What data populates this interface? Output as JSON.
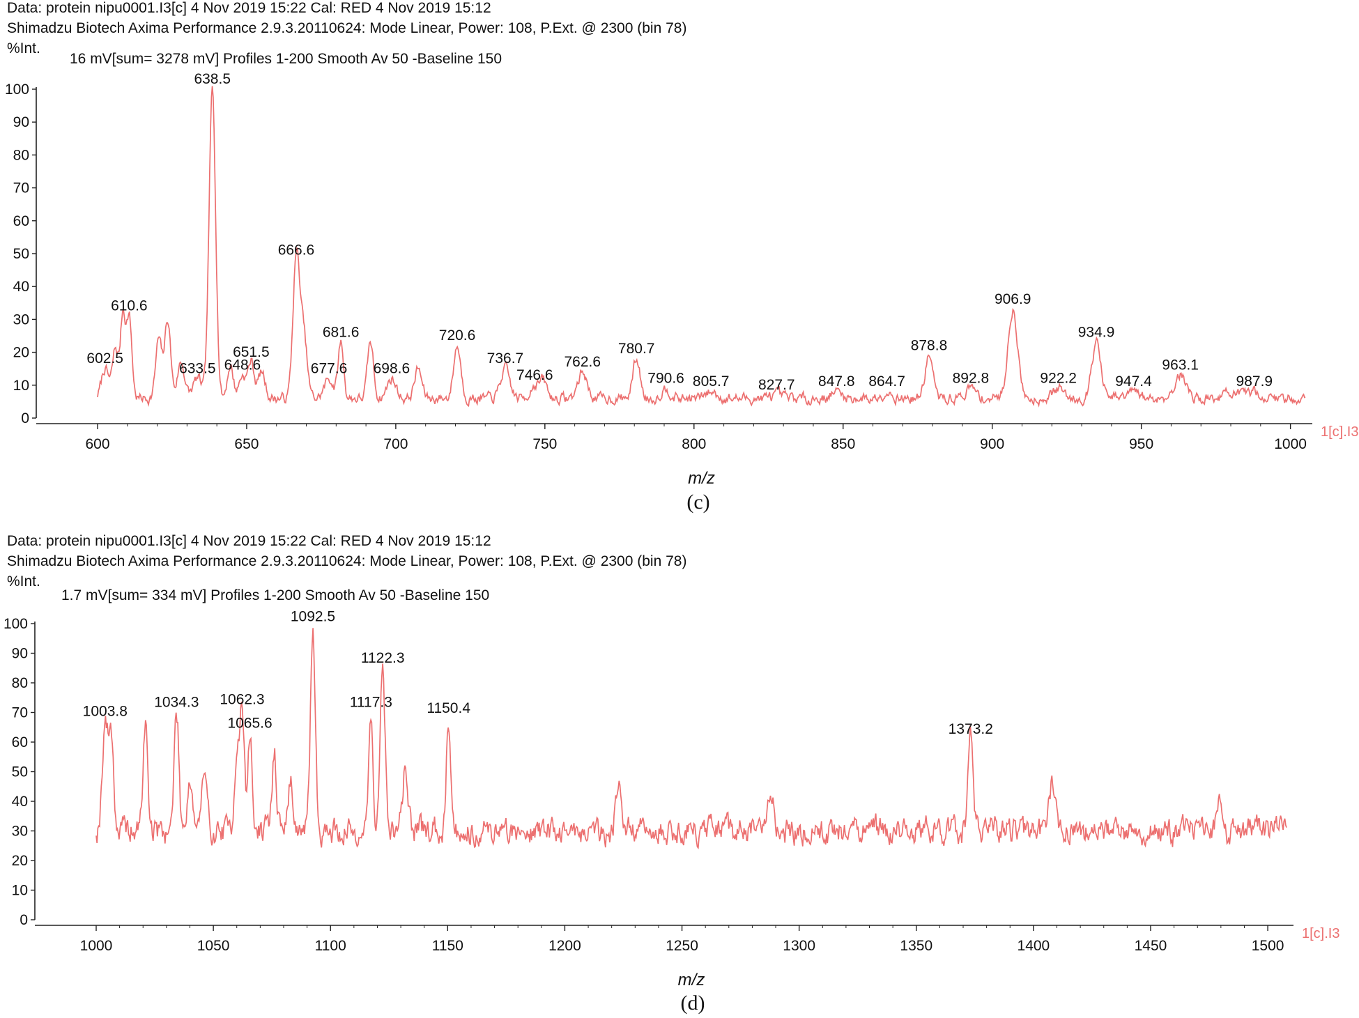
{
  "colors": {
    "trace": "#ec7070",
    "axis": "#222222",
    "trace_label": "#ec7070"
  },
  "chart_data": [
    {
      "id": "c",
      "type": "line",
      "caption": "(c)",
      "header_line1": "Data: protein nipu0001.I3[c] 4 Nov 2019 15:22 Cal: RED 4 Nov 2019 15:12",
      "header_line2": "Shimadzu Biotech Axima Performance 2.9.3.20110624: Mode Linear, Power: 108, P.Ext. @ 2300 (bin 78)",
      "ylabel": "%Int.",
      "subtitle": "16 mV[sum= 3278 mV]  Profiles 1-200 Smooth Av 50 -Baseline 150",
      "xlabel": "m/z",
      "trace_label": "1[c].I3",
      "xlim": [
        600,
        1005
      ],
      "ylim": [
        0,
        100
      ],
      "xticks": [
        600,
        650,
        700,
        750,
        800,
        850,
        900,
        950,
        1000
      ],
      "yticks": [
        0,
        10,
        20,
        30,
        40,
        50,
        60,
        70,
        80,
        90,
        100
      ],
      "baseline": 6,
      "peaks": [
        {
          "x": 602.5,
          "y": 15,
          "w": 1.2,
          "label": "602.5"
        },
        {
          "x": 606.0,
          "y": 21,
          "w": 1.0
        },
        {
          "x": 608.5,
          "y": 31,
          "w": 0.8
        },
        {
          "x": 610.6,
          "y": 31,
          "w": 0.9,
          "label": "610.6"
        },
        {
          "x": 620.5,
          "y": 24,
          "w": 1.0
        },
        {
          "x": 623.5,
          "y": 30,
          "w": 1.0
        },
        {
          "x": 628.0,
          "y": 17,
          "w": 1.2
        },
        {
          "x": 633.5,
          "y": 12,
          "w": 1.5,
          "label": "633.5"
        },
        {
          "x": 638.5,
          "y": 100,
          "w": 1.1,
          "label": "638.5"
        },
        {
          "x": 644.5,
          "y": 16,
          "w": 1.0
        },
        {
          "x": 648.6,
          "y": 13,
          "w": 1.2,
          "label": "648.6"
        },
        {
          "x": 651.5,
          "y": 17,
          "w": 1.0,
          "label": "651.5"
        },
        {
          "x": 655.0,
          "y": 14,
          "w": 1.2
        },
        {
          "x": 666.6,
          "y": 48,
          "w": 1.1,
          "label": "666.6"
        },
        {
          "x": 669.0,
          "y": 26,
          "w": 1.2
        },
        {
          "x": 677.6,
          "y": 12,
          "w": 1.5,
          "label": "677.6"
        },
        {
          "x": 681.6,
          "y": 23,
          "w": 0.9,
          "label": "681.6"
        },
        {
          "x": 691.5,
          "y": 23,
          "w": 1.0
        },
        {
          "x": 698.6,
          "y": 12,
          "w": 1.5,
          "label": "698.6"
        },
        {
          "x": 707.5,
          "y": 15,
          "w": 1.2
        },
        {
          "x": 720.6,
          "y": 22,
          "w": 1.2,
          "label": "720.6"
        },
        {
          "x": 736.7,
          "y": 15,
          "w": 1.5,
          "label": "736.7"
        },
        {
          "x": 746.6,
          "y": 10,
          "w": 1.5,
          "label": "746.6"
        },
        {
          "x": 749.5,
          "y": 11,
          "w": 1.2
        },
        {
          "x": 762.6,
          "y": 14,
          "w": 1.5,
          "label": "762.6"
        },
        {
          "x": 780.7,
          "y": 18,
          "w": 1.2,
          "label": "780.7"
        },
        {
          "x": 790.6,
          "y": 9,
          "w": 1.5,
          "label": "790.6"
        },
        {
          "x": 805.7,
          "y": 8,
          "w": 1.8,
          "label": "805.7"
        },
        {
          "x": 827.7,
          "y": 7,
          "w": 1.8,
          "label": "827.7"
        },
        {
          "x": 847.8,
          "y": 8,
          "w": 1.8,
          "label": "847.8"
        },
        {
          "x": 864.7,
          "y": 8,
          "w": 1.8,
          "label": "864.7"
        },
        {
          "x": 878.8,
          "y": 19,
          "w": 1.3,
          "label": "878.8"
        },
        {
          "x": 892.8,
          "y": 9,
          "w": 1.8,
          "label": "892.8"
        },
        {
          "x": 906.9,
          "y": 33,
          "w": 1.6,
          "label": "906.9"
        },
        {
          "x": 922.2,
          "y": 9,
          "w": 1.8,
          "label": "922.2"
        },
        {
          "x": 934.9,
          "y": 23,
          "w": 1.5,
          "label": "934.9"
        },
        {
          "x": 947.4,
          "y": 8,
          "w": 1.8,
          "label": "947.4"
        },
        {
          "x": 963.1,
          "y": 13,
          "w": 2.0,
          "label": "963.1"
        },
        {
          "x": 980.0,
          "y": 8,
          "w": 2.2
        },
        {
          "x": 987.9,
          "y": 8,
          "w": 2.0,
          "label": "987.9"
        }
      ]
    },
    {
      "id": "d",
      "type": "line",
      "caption": "(d)",
      "header_line1": "Data: protein nipu0001.I3[c] 4 Nov 2019 15:22 Cal: RED 4 Nov 2019 15:12",
      "header_line2": "Shimadzu Biotech Axima Performance 2.9.3.20110624: Mode Linear, Power: 108, P.Ext. @ 2300 (bin 78)",
      "ylabel": "%Int.",
      "subtitle": "1.7 mV[sum= 334 mV]  Profiles 1-200 Smooth Av 50 -Baseline 150",
      "xlabel": "m/z",
      "trace_label": "1[c].I3",
      "xlim": [
        1000,
        1508
      ],
      "ylim": [
        0,
        100
      ],
      "xticks": [
        1000,
        1050,
        1100,
        1150,
        1200,
        1250,
        1300,
        1350,
        1400,
        1450,
        1500
      ],
      "yticks": [
        0,
        10,
        20,
        30,
        40,
        50,
        60,
        70,
        80,
        90,
        100
      ],
      "baseline": 30,
      "peaks": [
        {
          "x": 1003.8,
          "y": 67,
          "w": 1.2,
          "label": "1003.8"
        },
        {
          "x": 1006.5,
          "y": 62,
          "w": 1.0
        },
        {
          "x": 1021.0,
          "y": 66,
          "w": 1.0
        },
        {
          "x": 1034.3,
          "y": 70,
          "w": 1.0,
          "label": "1034.3"
        },
        {
          "x": 1040.0,
          "y": 48,
          "w": 1.2
        },
        {
          "x": 1046.0,
          "y": 47,
          "w": 1.2
        },
        {
          "x": 1060.0,
          "y": 58,
          "w": 1.0
        },
        {
          "x": 1062.3,
          "y": 71,
          "w": 0.9,
          "label": "1062.3"
        },
        {
          "x": 1065.6,
          "y": 63,
          "w": 0.9,
          "label": "1065.6"
        },
        {
          "x": 1076.0,
          "y": 56,
          "w": 1.0
        },
        {
          "x": 1083.0,
          "y": 46,
          "w": 1.2
        },
        {
          "x": 1092.5,
          "y": 99,
          "w": 1.0,
          "label": "1092.5"
        },
        {
          "x": 1117.3,
          "y": 70,
          "w": 0.9,
          "label": "1117.3"
        },
        {
          "x": 1122.3,
          "y": 85,
          "w": 1.0,
          "label": "1122.3"
        },
        {
          "x": 1132.0,
          "y": 51,
          "w": 1.2
        },
        {
          "x": 1150.4,
          "y": 68,
          "w": 1.0,
          "label": "1150.4"
        },
        {
          "x": 1223.0,
          "y": 47,
          "w": 1.2
        },
        {
          "x": 1288.0,
          "y": 44,
          "w": 1.2
        },
        {
          "x": 1373.2,
          "y": 61,
          "w": 1.0,
          "label": "1373.2"
        },
        {
          "x": 1408.0,
          "y": 47,
          "w": 1.2
        },
        {
          "x": 1480.0,
          "y": 40,
          "w": 1.2
        }
      ]
    }
  ]
}
